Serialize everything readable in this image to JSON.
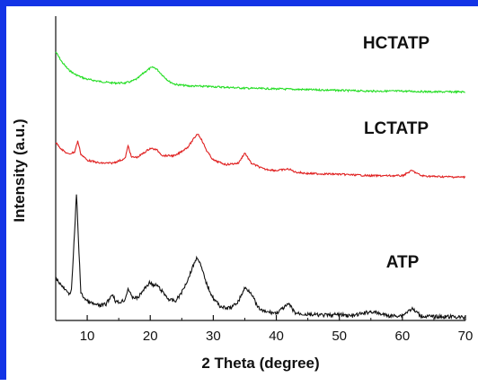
{
  "frame_color": "#1334e6",
  "chart_data": {
    "type": "line",
    "xlabel": "2 Theta (degree)",
    "ylabel": "Intensity (a.u.)",
    "xlim": [
      5,
      70
    ],
    "xticks": [
      "10",
      "20",
      "30",
      "40",
      "50",
      "60",
      "70"
    ],
    "ylim": [
      0,
      4.1
    ],
    "grid": false,
    "legend": "direct labels",
    "series": [
      {
        "name": "HCTATP",
        "color": "#22dd22",
        "x": [
          5,
          6,
          7,
          8,
          9,
          10,
          12,
          14,
          16,
          17,
          18,
          19,
          20,
          20.5,
          21,
          22,
          23,
          24,
          26,
          30,
          35,
          40,
          45,
          50,
          55,
          60,
          65,
          70
        ],
        "y": [
          3.62,
          3.48,
          3.38,
          3.32,
          3.28,
          3.25,
          3.22,
          3.2,
          3.2,
          3.22,
          3.26,
          3.34,
          3.4,
          3.41,
          3.39,
          3.3,
          3.22,
          3.18,
          3.16,
          3.15,
          3.13,
          3.12,
          3.11,
          3.1,
          3.09,
          3.09,
          3.08,
          3.08
        ]
      },
      {
        "name": "LCTATP",
        "color": "#e02020",
        "x": [
          5,
          6,
          7,
          8,
          8.5,
          9,
          10,
          12,
          14,
          16,
          16.5,
          17,
          18,
          20,
          21,
          22,
          24,
          26,
          27,
          27.5,
          28,
          29,
          30,
          32,
          34,
          35,
          36,
          38,
          40,
          42,
          43,
          45,
          50,
          55,
          60,
          61.5,
          63,
          65,
          70
        ],
        "y": [
          2.4,
          2.3,
          2.24,
          2.27,
          2.42,
          2.24,
          2.16,
          2.12,
          2.12,
          2.18,
          2.36,
          2.2,
          2.2,
          2.32,
          2.3,
          2.22,
          2.22,
          2.34,
          2.46,
          2.52,
          2.46,
          2.28,
          2.16,
          2.1,
          2.12,
          2.26,
          2.12,
          2.04,
          2.02,
          2.04,
          2.0,
          1.98,
          1.97,
          1.95,
          1.95,
          2.02,
          1.95,
          1.94,
          1.93
        ]
      },
      {
        "name": "ATP",
        "color": "#111111",
        "x": [
          5,
          6,
          7,
          7.5,
          8,
          8.3,
          8.6,
          9,
          10,
          11,
          12,
          13,
          14,
          14.5,
          15,
          16,
          16.5,
          17,
          18,
          19,
          20,
          20.5,
          21,
          22,
          23,
          24,
          25,
          26,
          27,
          27.5,
          28,
          29,
          30,
          31,
          32,
          33,
          34,
          35,
          36,
          37,
          38,
          40,
          42,
          43,
          45,
          48,
          50,
          52,
          55,
          58,
          60,
          61.5,
          63,
          65,
          68,
          70
        ],
        "y": [
          0.58,
          0.46,
          0.36,
          0.4,
          1.2,
          1.72,
          1.1,
          0.36,
          0.26,
          0.22,
          0.2,
          0.22,
          0.36,
          0.26,
          0.24,
          0.28,
          0.44,
          0.32,
          0.3,
          0.42,
          0.52,
          0.46,
          0.48,
          0.38,
          0.28,
          0.26,
          0.38,
          0.56,
          0.78,
          0.86,
          0.74,
          0.48,
          0.3,
          0.2,
          0.16,
          0.18,
          0.26,
          0.44,
          0.38,
          0.18,
          0.12,
          0.1,
          0.22,
          0.1,
          0.08,
          0.07,
          0.08,
          0.06,
          0.12,
          0.06,
          0.07,
          0.16,
          0.06,
          0.05,
          0.05,
          0.04
        ]
      }
    ]
  }
}
